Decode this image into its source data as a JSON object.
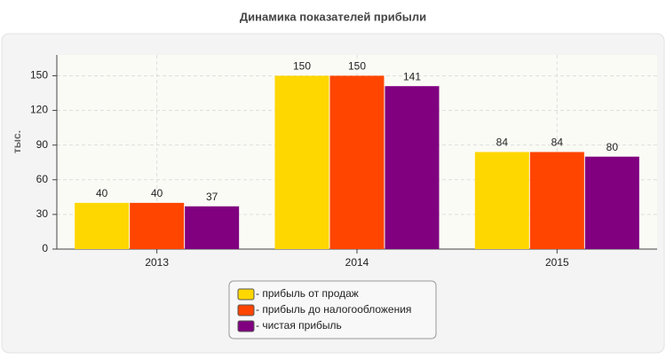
{
  "chart_data": {
    "type": "bar",
    "title": "Динамика показателей прибыли",
    "y_label": "тыс.",
    "categories": [
      "2013",
      "2014",
      "2015"
    ],
    "series": [
      {
        "name": "- прибыль от продаж",
        "color": "#ffd700",
        "values": [
          40,
          150,
          84
        ]
      },
      {
        "name": "- прибыль до налогообложения",
        "color": "#ff4500",
        "values": [
          40,
          150,
          84
        ]
      },
      {
        "name": "- чистая прибыль",
        "color": "#800080",
        "values": [
          37,
          141,
          80
        ]
      }
    ],
    "ylim": [
      0,
      168
    ],
    "yticks": [
      0,
      30,
      60,
      90,
      120,
      150
    ],
    "grid": true,
    "legend": "bottom"
  }
}
